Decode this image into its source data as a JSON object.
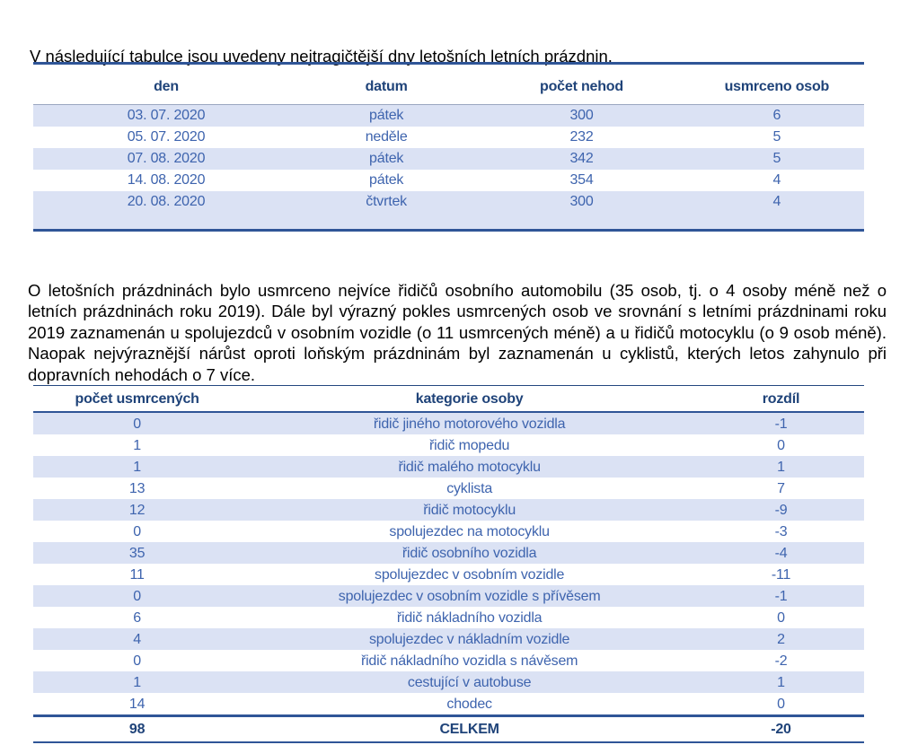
{
  "page": {
    "intro": "V následující tabulce jsou uvedeny nejtragičtější dny letošních letních prázdnin.",
    "paragraph": "O letošních prázdninách bylo usmrceno nejvíce řidičů osobního automobilu (35 osob, tj. o 4 osoby méně než o letních prázdninách roku 2019). Dále byl výrazný pokles usmrcených osob ve srovnání s letními prázdninami roku 2019 zaznamenán u spolujezdců v osobním vozidle (o 11 usmrcených méně) a u řidičů motocyklu (o 9 osob méně). Naopak nejvýraznější nárůst oproti loňským prázdninám byl zaznamenán u cyklistů, kterých letos zahynulo při dopravních nehodách o 7 více."
  },
  "colors": {
    "header_text": "#1f4379",
    "body_text": "#3e64ae",
    "row_shade": "#dbe2f4",
    "border_dark": "#2f5597"
  },
  "table_tragic_days": {
    "columns": [
      "den",
      "datum",
      "počet nehod",
      "usmrceno osob"
    ],
    "rows": [
      [
        "03. 07. 2020",
        "pátek",
        "300",
        "6"
      ],
      [
        "05. 07. 2020",
        "neděle",
        "232",
        "5"
      ],
      [
        "07. 08. 2020",
        "pátek",
        "342",
        "5"
      ],
      [
        "14. 08. 2020",
        "pátek",
        "354",
        "4"
      ],
      [
        "20. 08. 2020",
        "čtvrtek",
        "300",
        "4"
      ]
    ]
  },
  "table_casualties": {
    "columns": [
      "počet usmrcených",
      "kategorie osoby",
      "rozdíl"
    ],
    "rows": [
      [
        "0",
        "řidič jiného motorového vozidla",
        "-1"
      ],
      [
        "1",
        "řidič mopedu",
        "0"
      ],
      [
        "1",
        "řidič malého motocyklu",
        "1"
      ],
      [
        "13",
        "cyklista",
        "7"
      ],
      [
        "12",
        "řidič motocyklu",
        "-9"
      ],
      [
        "0",
        "spolujezdec na motocyklu",
        "-3"
      ],
      [
        "35",
        "řidič osobního vozidla",
        "-4"
      ],
      [
        "11",
        "spolujezdec v osobním vozidle",
        "-11"
      ],
      [
        "0",
        "spolujezdec v osobním vozidle s přívěsem",
        "-1"
      ],
      [
        "6",
        "řidič nákladního vozidla",
        "0"
      ],
      [
        "4",
        "spolujezdec v nákladním vozidle",
        "2"
      ],
      [
        "0",
        "řidič nákladního vozidla s návěsem",
        "-2"
      ],
      [
        "1",
        "cestující v autobuse",
        "1"
      ],
      [
        "14",
        "chodec",
        "0"
      ]
    ],
    "total": [
      "98",
      "CELKEM",
      "-20"
    ]
  }
}
